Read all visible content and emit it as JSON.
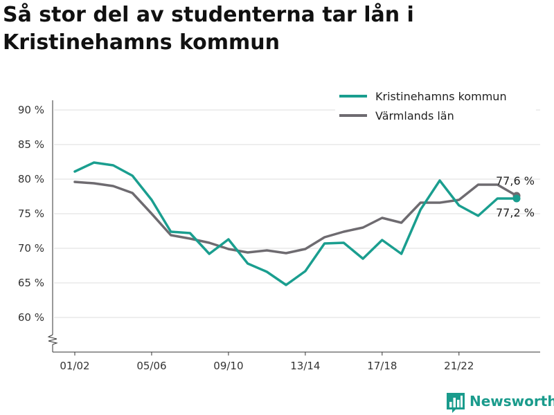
{
  "title": "Så stor del av studenterna tar lån i Kristinehamns kommun",
  "brand": {
    "name": "Newsworthy",
    "icon": "bar-chart-logo-icon",
    "color": "#1a9b8c"
  },
  "chart_data": {
    "type": "line",
    "title": "Så stor del av studenterna tar lån i Kristinehamns kommun",
    "xlabel": "",
    "ylabel": "",
    "ylim": [
      55,
      90
    ],
    "yticks": [
      60,
      65,
      70,
      75,
      80,
      85,
      90
    ],
    "ytick_labels": [
      "60 %",
      "65 %",
      "70 %",
      "75 %",
      "80 %",
      "85 %",
      "90 %"
    ],
    "y_axis_break": true,
    "x": [
      "01/02",
      "02/03",
      "03/04",
      "04/05",
      "05/06",
      "06/07",
      "07/08",
      "08/09",
      "09/10",
      "10/11",
      "11/12",
      "12/13",
      "13/14",
      "14/15",
      "15/16",
      "16/17",
      "17/18",
      "18/19",
      "19/20",
      "20/21",
      "21/22",
      "22/23",
      "23/24",
      "24/25"
    ],
    "xtick_labels": [
      "01/02",
      "05/06",
      "09/10",
      "13/14",
      "17/18",
      "21/22"
    ],
    "grid": "horizontal",
    "legend": "top-right",
    "series": [
      {
        "name": "Kristinehamns kommun",
        "color": "#1a9e8f",
        "values": [
          81.1,
          82.4,
          82.0,
          80.5,
          77.0,
          72.4,
          72.2,
          69.2,
          71.3,
          67.8,
          66.6,
          64.7,
          66.7,
          70.7,
          70.8,
          68.5,
          71.2,
          69.2,
          75.6,
          79.8,
          76.2,
          74.7,
          77.2,
          77.2
        ],
        "end_label": "77,2 %"
      },
      {
        "name": "Värmlands län",
        "color": "#6e6b70",
        "values": [
          79.6,
          79.4,
          79.0,
          78.0,
          75.0,
          71.9,
          71.4,
          70.8,
          69.9,
          69.4,
          69.7,
          69.3,
          69.9,
          71.6,
          72.4,
          73.0,
          74.4,
          73.7,
          76.6,
          76.6,
          77.0,
          79.2,
          79.2,
          77.6
        ],
        "end_label": "77,6 %"
      }
    ]
  }
}
